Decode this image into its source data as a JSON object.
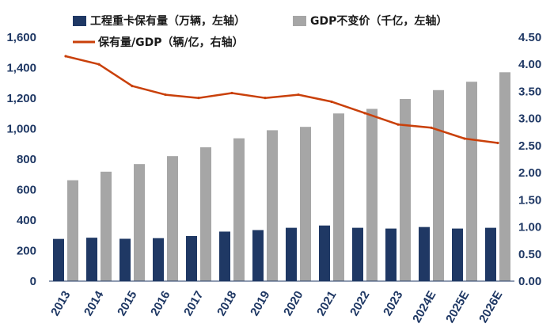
{
  "chart_data": {
    "type": "bar",
    "categories": [
      "2013",
      "2014",
      "2015",
      "2016",
      "2017",
      "2018",
      "2019",
      "2020",
      "2021",
      "2022",
      "2023",
      "2024E",
      "2025E",
      "2026E"
    ],
    "series": [
      {
        "name": "工程重卡保有量（万辆，左轴）",
        "type": "bar",
        "axis": "left",
        "color": "#1f3864",
        "values": [
          277,
          285,
          278,
          282,
          296,
          325,
          335,
          350,
          365,
          350,
          345,
          355,
          345,
          350
        ]
      },
      {
        "name": "GDP不变价（千亿，左轴）",
        "type": "bar",
        "axis": "left",
        "color": "#a6a6a6",
        "values": [
          662,
          718,
          768,
          820,
          878,
          937,
          990,
          1012,
          1100,
          1130,
          1195,
          1253,
          1308,
          1370
        ]
      },
      {
        "name": "保有量/GDP（辆/亿，右轴）",
        "type": "line",
        "axis": "right",
        "color": "#c9400a",
        "values": [
          4.15,
          4.0,
          3.6,
          3.44,
          3.38,
          3.47,
          3.38,
          3.44,
          3.31,
          3.1,
          2.89,
          2.83,
          2.63,
          2.55
        ]
      }
    ],
    "y_left": {
      "min": 0,
      "max": 1600,
      "step": 200,
      "tick_labels": [
        "0",
        "200",
        "400",
        "600",
        "800",
        "1,000",
        "1,200",
        "1,400",
        "1,600"
      ]
    },
    "y_right": {
      "min": 0,
      "max": 4.5,
      "step": 0.5,
      "tick_labels": [
        "0.00",
        "0.50",
        "1.00",
        "1.50",
        "2.00",
        "2.50",
        "3.00",
        "3.50",
        "4.00",
        "4.50"
      ]
    },
    "legend_position": "top",
    "grid": false
  }
}
